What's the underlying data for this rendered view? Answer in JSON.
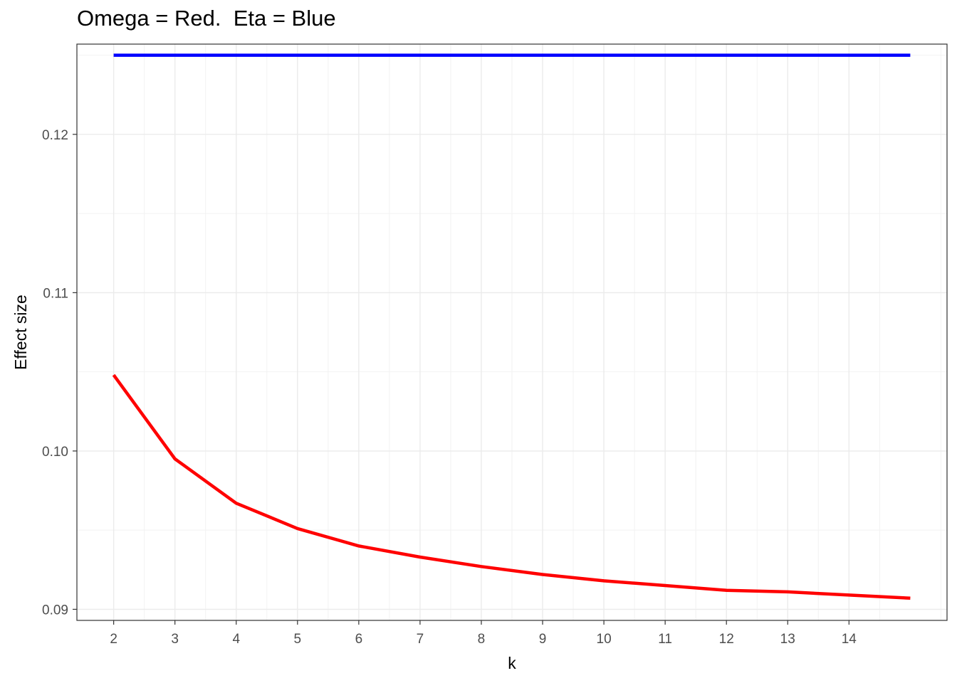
{
  "chart_data": {
    "type": "line",
    "title": "Omega = Red.  Eta = Blue",
    "xlabel": "k",
    "ylabel": "Effect size",
    "xlim": [
      1.4,
      15.6
    ],
    "ylim": [
      0.0893,
      0.1257
    ],
    "x_ticks": [
      2,
      3,
      4,
      5,
      6,
      7,
      8,
      9,
      10,
      11,
      12,
      13,
      14
    ],
    "y_ticks": [
      0.09,
      0.1,
      0.11,
      0.12
    ],
    "y_tick_labels": [
      "0.09",
      "0.10",
      "0.11",
      "0.12"
    ],
    "grid": true,
    "series": [
      {
        "color": "#0000ff",
        "x": [
          2,
          3,
          4,
          5,
          6,
          7,
          8,
          9,
          10,
          11,
          12,
          13,
          14,
          15
        ],
        "y": [
          0.125,
          0.125,
          0.125,
          0.125,
          0.125,
          0.125,
          0.125,
          0.125,
          0.125,
          0.125,
          0.125,
          0.125,
          0.125,
          0.125
        ]
      },
      {
        "color": "#ff0000",
        "x": [
          2,
          3,
          4,
          5,
          6,
          7,
          8,
          9,
          10,
          11,
          12,
          13,
          14,
          15
        ],
        "y": [
          0.1048,
          0.0995,
          0.0967,
          0.0951,
          0.094,
          0.0933,
          0.0927,
          0.0922,
          0.0918,
          0.0915,
          0.0912,
          0.0911,
          0.0909,
          0.0907
        ]
      }
    ]
  }
}
